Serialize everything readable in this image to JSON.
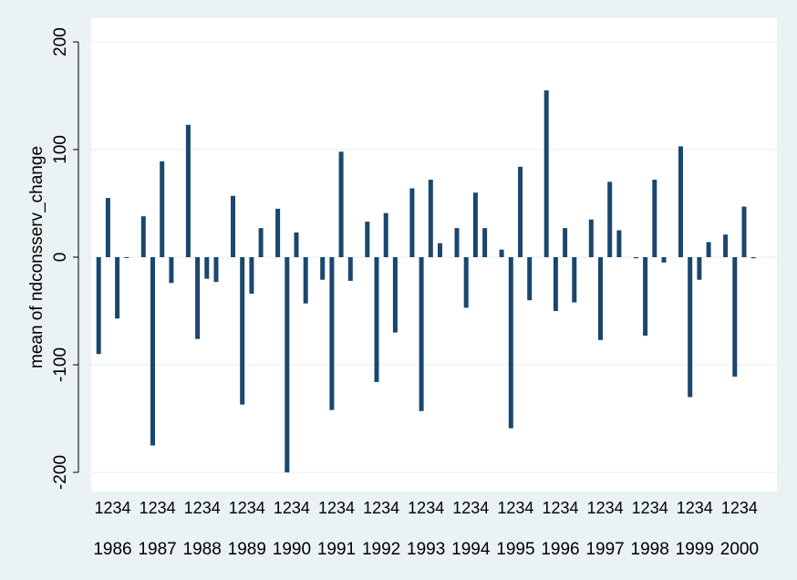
{
  "chart_data": {
    "type": "bar",
    "ylabel": "mean of ndconsserv_change",
    "ylim": [
      -200,
      200
    ],
    "yticks": [
      -200,
      -100,
      0,
      100,
      200
    ],
    "grid": true,
    "bar_color": "#1a476f",
    "plot_background": "#ffffff",
    "page_background": "#eaf2f3",
    "gridline_color": "#eaf2f3",
    "quarter_labels": [
      "1",
      "2",
      "3",
      "4"
    ],
    "groups": [
      {
        "label": "1986",
        "values": [
          -90,
          55,
          -57,
          0
        ]
      },
      {
        "label": "1987",
        "values": [
          38,
          -175,
          89,
          -24
        ]
      },
      {
        "label": "1988",
        "values": [
          123,
          -76,
          -20,
          -23
        ]
      },
      {
        "label": "1989",
        "values": [
          57,
          -137,
          -34,
          27
        ]
      },
      {
        "label": "1990",
        "values": [
          45,
          -200,
          23,
          -43
        ]
      },
      {
        "label": "1991",
        "values": [
          -21,
          -142,
          98,
          -22
        ]
      },
      {
        "label": "1992",
        "values": [
          33,
          -116,
          41,
          -70
        ]
      },
      {
        "label": "1993",
        "values": [
          64,
          -143,
          72,
          13
        ]
      },
      {
        "label": "1994",
        "values": [
          27,
          -47,
          60,
          27
        ]
      },
      {
        "label": "1995",
        "values": [
          7,
          -159,
          84,
          -40
        ]
      },
      {
        "label": "1996",
        "values": [
          155,
          -50,
          27,
          -42
        ]
      },
      {
        "label": "1997",
        "values": [
          35,
          -77,
          70,
          25
        ]
      },
      {
        "label": "1998",
        "values": [
          -1,
          -73,
          72,
          -5
        ]
      },
      {
        "label": "1999",
        "values": [
          103,
          -130,
          -21,
          14
        ]
      },
      {
        "label": "2000",
        "values": [
          21,
          -111,
          47,
          -1
        ]
      }
    ]
  }
}
